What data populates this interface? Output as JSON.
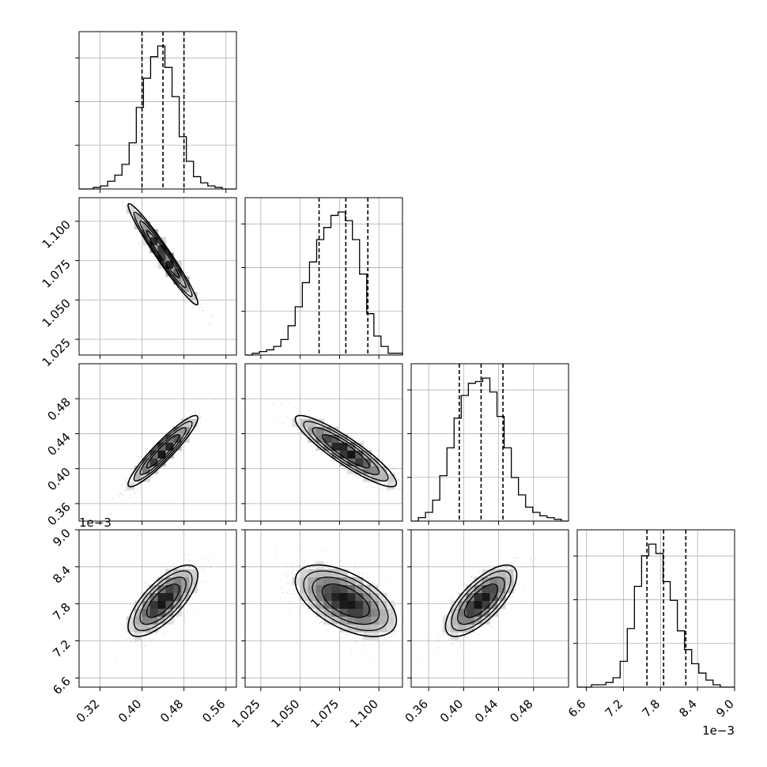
{
  "chart_data": {
    "type": "corner",
    "title": "",
    "parameters": [
      {
        "label": "",
        "range": [
          0.28,
          0.58
        ],
        "ticks": [
          0.32,
          0.4,
          0.48,
          0.56
        ],
        "tick_labels": [
          "0.32",
          "0.40",
          "0.48",
          "0.56"
        ],
        "offset_text": "",
        "quantiles": [
          0.4,
          0.44,
          0.48
        ]
      },
      {
        "label": "",
        "range": [
          1.015,
          1.115
        ],
        "ticks": [
          1.025,
          1.05,
          1.075,
          1.1
        ],
        "tick_labels": [
          "1.025",
          "1.050",
          "1.075",
          "1.100"
        ],
        "offset_text": "",
        "quantiles": [
          1.062,
          1.079,
          1.093
        ]
      },
      {
        "label": "",
        "range": [
          0.34,
          0.52
        ],
        "ticks": [
          0.36,
          0.4,
          0.44,
          0.48
        ],
        "tick_labels": [
          "0.36",
          "0.40",
          "0.44",
          "0.48"
        ],
        "offset_text": "",
        "quantiles": [
          0.395,
          0.42,
          0.445
        ]
      },
      {
        "label": "",
        "range": [
          6.45,
          9.0
        ],
        "ticks": [
          6.6,
          7.2,
          7.8,
          8.4,
          9.0
        ],
        "tick_labels": [
          "6.6",
          "7.2",
          "7.8",
          "8.4",
          "9.0"
        ],
        "offset_text": "1e−3",
        "quantiles": [
          7.58,
          7.85,
          8.21
        ]
      }
    ],
    "histograms": [
      {
        "param": 0,
        "edges_range": [
          0.28,
          0.58
        ],
        "counts": [
          0,
          0,
          1,
          2,
          5,
          9,
          16,
          30,
          53,
          72,
          86,
          93,
          79,
          60,
          34,
          18,
          8,
          4,
          2,
          1,
          0,
          0
        ]
      },
      {
        "param": 1,
        "edges_range": [
          1.015,
          1.115
        ],
        "counts": [
          0,
          1,
          2,
          3,
          5,
          9,
          17,
          28,
          42,
          54,
          67,
          74,
          81,
          83,
          78,
          67,
          47,
          24,
          11,
          5,
          1,
          1
        ]
      },
      {
        "param": 2,
        "edges_range": [
          0.34,
          0.52
        ],
        "counts": [
          0,
          2,
          5,
          12,
          26,
          42,
          59,
          72,
          79,
          80,
          82,
          74,
          60,
          42,
          25,
          15,
          8,
          5,
          3,
          2,
          1,
          0
        ]
      },
      {
        "param": 3,
        "edges_range": [
          6.45,
          9.0
        ],
        "counts": [
          0,
          0,
          1,
          1,
          2,
          4,
          11,
          25,
          43,
          56,
          61,
          57,
          45,
          37,
          24,
          16,
          10,
          6,
          3,
          1,
          0,
          0
        ]
      }
    ],
    "pairs": [
      {
        "x": 0,
        "y": 1,
        "mean": [
          0.44,
          1.079
        ],
        "sd": [
          0.031,
          0.015
        ],
        "corr": -0.97
      },
      {
        "x": 0,
        "y": 2,
        "mean": [
          0.44,
          0.42
        ],
        "sd": [
          0.031,
          0.019
        ],
        "corr": 0.93
      },
      {
        "x": 0,
        "y": 3,
        "mean": [
          0.44,
          7.85
        ],
        "sd": [
          0.031,
          0.27
        ],
        "corr": 0.72
      },
      {
        "x": 1,
        "y": 2,
        "mean": [
          1.079,
          0.42
        ],
        "sd": [
          0.015,
          0.019
        ],
        "corr": -0.9
      },
      {
        "x": 1,
        "y": 3,
        "mean": [
          1.079,
          7.85
        ],
        "sd": [
          0.015,
          0.27
        ],
        "corr": -0.55
      },
      {
        "x": 2,
        "y": 3,
        "mean": [
          0.42,
          7.85
        ],
        "sd": [
          0.019,
          0.27
        ],
        "corr": 0.72
      }
    ],
    "grid": true,
    "contour_levels": [
      "0.5 sigma",
      "1 sigma",
      "1.5 sigma",
      "2 sigma"
    ],
    "colors": {
      "hist": "#000000",
      "contour": "#000000",
      "density": "#000000",
      "points": "#808080",
      "grid": "#b0b0b0"
    }
  }
}
